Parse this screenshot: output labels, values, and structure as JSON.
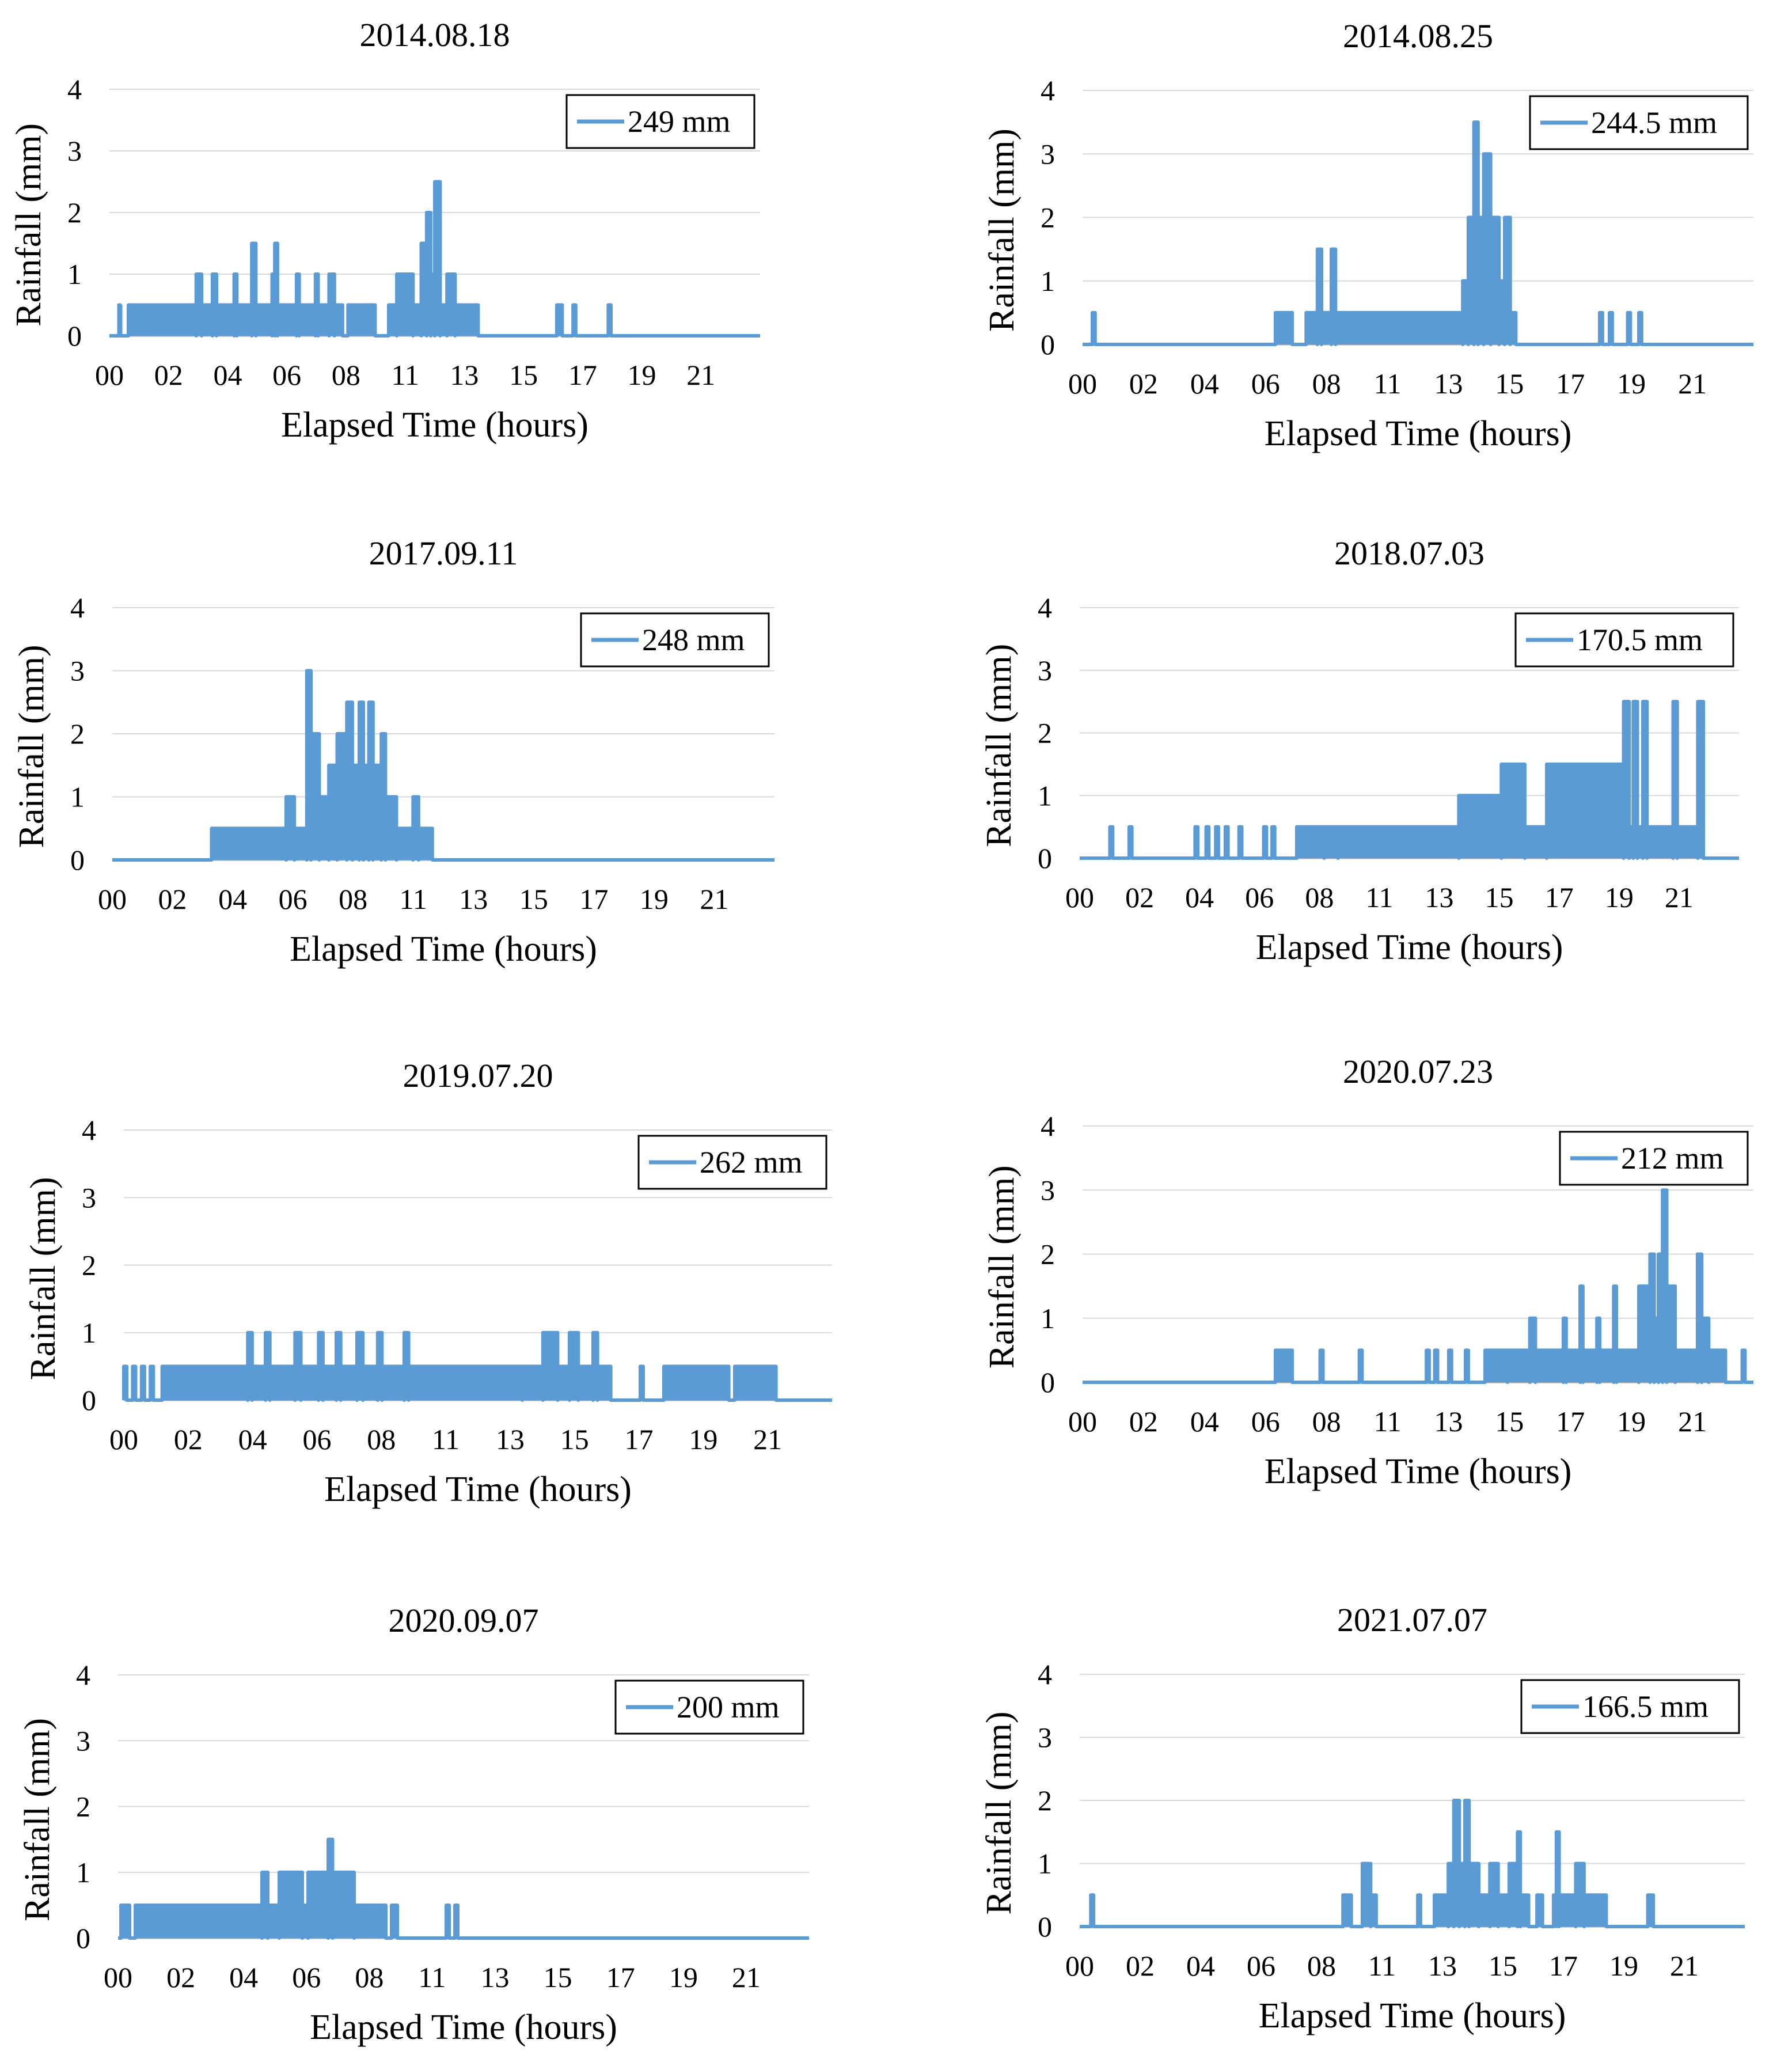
{
  "figure": {
    "series_color": "#5B9BD5",
    "grid_color": "#D9D9D9",
    "axis_color": "#A6A6A6"
  },
  "chart_data": [
    {
      "type": "line",
      "title": "2014.08.18",
      "xlabel": "Elapsed Time (hours)",
      "ylabel": "Rainfall (mm)",
      "ylim": [
        0,
        4
      ],
      "yticks": [
        "0",
        "1",
        "2",
        "3",
        "4"
      ],
      "xlim": [
        0,
        24
      ],
      "xticks": [
        "00",
        "02",
        "04",
        "06",
        "08",
        "11",
        "13",
        "15",
        "17",
        "19",
        "21"
      ],
      "grid": true,
      "legend": {
        "label": "249 mm",
        "position": "top-right"
      },
      "bursts": [
        [
          0.35,
          0.4,
          0.5
        ],
        [
          0.7,
          3.2,
          0.5
        ],
        [
          3.2,
          3.4,
          1.0
        ],
        [
          3.4,
          3.8,
          0.5
        ],
        [
          3.8,
          3.95,
          1.0
        ],
        [
          3.95,
          4.6,
          0.5
        ],
        [
          4.6,
          4.7,
          1.0
        ],
        [
          4.7,
          5.25,
          0.5
        ],
        [
          5.25,
          5.4,
          1.5
        ],
        [
          5.4,
          6.0,
          0.5
        ],
        [
          6.0,
          6.1,
          1.0
        ],
        [
          6.1,
          6.2,
          1.5
        ],
        [
          6.2,
          6.9,
          0.5
        ],
        [
          6.9,
          7.0,
          1.0
        ],
        [
          7.0,
          7.6,
          0.5
        ],
        [
          7.6,
          7.7,
          1.0
        ],
        [
          7.7,
          8.1,
          0.5
        ],
        [
          8.1,
          8.3,
          1.0
        ],
        [
          8.3,
          8.6,
          0.5
        ],
        [
          8.8,
          9.8,
          0.5
        ],
        [
          10.3,
          10.6,
          0.5
        ],
        [
          10.6,
          11.2,
          1.0
        ],
        [
          11.2,
          11.5,
          0.5
        ],
        [
          11.5,
          11.7,
          1.5
        ],
        [
          11.7,
          11.85,
          2.0
        ],
        [
          11.85,
          12.0,
          1.0
        ],
        [
          12.0,
          12.2,
          2.5
        ],
        [
          12.2,
          12.45,
          0.5
        ],
        [
          12.45,
          12.75,
          1.0
        ],
        [
          12.75,
          13.6,
          0.5
        ],
        [
          16.5,
          16.7,
          0.5
        ],
        [
          17.1,
          17.2,
          0.5
        ],
        [
          18.4,
          18.5,
          0.5
        ]
      ]
    },
    {
      "type": "line",
      "title": "2014.08.25",
      "xlabel": "Elapsed Time (hours)",
      "ylabel": "Rainfall (mm)",
      "ylim": [
        0,
        4
      ],
      "yticks": [
        "0",
        "1",
        "2",
        "3",
        "4"
      ],
      "xlim": [
        0,
        24
      ],
      "xticks": [
        "00",
        "02",
        "04",
        "06",
        "08",
        "11",
        "13",
        "15",
        "17",
        "19",
        "21"
      ],
      "grid": true,
      "legend": {
        "label": "244.5 mm",
        "position": "top-right"
      },
      "bursts": [
        [
          0.35,
          0.45,
          0.5
        ],
        [
          6.9,
          7.5,
          0.5
        ],
        [
          8.0,
          8.4,
          0.5
        ],
        [
          8.4,
          8.55,
          1.5
        ],
        [
          8.55,
          8.9,
          0.5
        ],
        [
          8.9,
          9.05,
          1.5
        ],
        [
          9.05,
          13.6,
          0.5
        ],
        [
          13.6,
          13.8,
          1.0
        ],
        [
          13.8,
          14.0,
          2.0
        ],
        [
          14.0,
          14.15,
          3.5
        ],
        [
          14.15,
          14.35,
          2.0
        ],
        [
          14.35,
          14.6,
          3.0
        ],
        [
          14.6,
          14.9,
          2.0
        ],
        [
          14.9,
          15.1,
          1.0
        ],
        [
          15.1,
          15.3,
          2.0
        ],
        [
          15.3,
          15.5,
          0.5
        ],
        [
          18.5,
          18.6,
          0.5
        ],
        [
          18.85,
          18.95,
          0.5
        ],
        [
          19.5,
          19.6,
          0.5
        ],
        [
          19.9,
          20.0,
          0.5
        ]
      ]
    },
    {
      "type": "line",
      "title": "2017.09.11",
      "xlabel": "Elapsed Time (hours)",
      "ylabel": "Rainfall (mm)",
      "ylim": [
        0,
        4
      ],
      "yticks": [
        "0",
        "1",
        "2",
        "3",
        "4"
      ],
      "xlim": [
        0,
        24
      ],
      "xticks": [
        "00",
        "02",
        "04",
        "06",
        "08",
        "11",
        "13",
        "15",
        "17",
        "19",
        "21"
      ],
      "grid": true,
      "legend": {
        "label": "248 mm",
        "position": "top-right"
      },
      "bursts": [
        [
          3.6,
          6.3,
          0.5
        ],
        [
          6.3,
          6.6,
          1.0
        ],
        [
          6.6,
          7.05,
          0.5
        ],
        [
          7.05,
          7.2,
          3.0
        ],
        [
          7.2,
          7.5,
          2.0
        ],
        [
          7.5,
          7.85,
          1.0
        ],
        [
          7.85,
          8.15,
          1.5
        ],
        [
          8.15,
          8.5,
          2.0
        ],
        [
          8.5,
          8.7,
          2.5
        ],
        [
          8.7,
          8.95,
          1.5
        ],
        [
          8.95,
          9.1,
          2.5
        ],
        [
          9.1,
          9.3,
          1.5
        ],
        [
          9.3,
          9.45,
          2.5
        ],
        [
          9.45,
          9.75,
          1.5
        ],
        [
          9.75,
          9.9,
          2.0
        ],
        [
          9.9,
          10.3,
          1.0
        ],
        [
          10.3,
          10.9,
          0.5
        ],
        [
          10.9,
          11.1,
          1.0
        ],
        [
          11.1,
          11.6,
          0.5
        ]
      ]
    },
    {
      "type": "line",
      "title": "2018.07.03",
      "xlabel": "Elapsed Time (hours)",
      "ylabel": "Rainfall (mm)",
      "ylim": [
        0,
        4
      ],
      "yticks": [
        "0",
        "1",
        "2",
        "3",
        "4"
      ],
      "xlim": [
        0,
        24
      ],
      "xticks": [
        "00",
        "02",
        "04",
        "06",
        "08",
        "11",
        "13",
        "15",
        "17",
        "19",
        "21"
      ],
      "grid": true,
      "legend": {
        "label": "170.5 mm",
        "position": "top-right"
      },
      "bursts": [
        [
          1.1,
          1.2,
          0.5
        ],
        [
          1.8,
          1.9,
          0.5
        ],
        [
          4.2,
          4.3,
          0.5
        ],
        [
          4.6,
          4.7,
          0.5
        ],
        [
          4.95,
          5.05,
          0.5
        ],
        [
          5.3,
          5.4,
          0.5
        ],
        [
          5.8,
          5.9,
          0.5
        ],
        [
          6.7,
          6.8,
          0.5
        ],
        [
          7.0,
          7.1,
          0.5
        ],
        [
          7.9,
          8.9,
          0.5
        ],
        [
          8.9,
          9.4,
          0.5
        ],
        [
          9.4,
          13.8,
          0.5
        ],
        [
          13.8,
          15.35,
          1.0
        ],
        [
          15.35,
          16.2,
          1.5
        ],
        [
          16.2,
          17.0,
          0.5
        ],
        [
          17.0,
          19.8,
          1.5
        ],
        [
          19.8,
          20.0,
          2.5
        ],
        [
          20.0,
          20.15,
          0.5
        ],
        [
          20.15,
          20.3,
          2.5
        ],
        [
          20.3,
          20.5,
          0.5
        ],
        [
          20.5,
          20.65,
          2.5
        ],
        [
          20.65,
          21.6,
          0.5
        ],
        [
          21.6,
          21.75,
          2.5
        ],
        [
          21.75,
          22.5,
          0.5
        ],
        [
          22.5,
          22.7,
          2.5
        ]
      ]
    },
    {
      "type": "line",
      "title": "2019.07.20",
      "xlabel": "Elapsed Time (hours)",
      "ylabel": "Rainfall (mm)",
      "ylim": [
        0,
        4
      ],
      "yticks": [
        "0",
        "1",
        "2",
        "3",
        "4"
      ],
      "xlim": [
        0,
        24
      ],
      "xticks": [
        "00",
        "02",
        "04",
        "06",
        "08",
        "11",
        "13",
        "15",
        "17",
        "19",
        "21"
      ],
      "grid": true,
      "legend": {
        "label": "262 mm",
        "position": "top-right"
      },
      "bursts": [
        [
          0.0,
          0.1,
          0.5
        ],
        [
          0.3,
          0.4,
          0.5
        ],
        [
          0.6,
          0.7,
          0.5
        ],
        [
          0.9,
          1.0,
          0.5
        ],
        [
          1.3,
          4.2,
          0.5
        ],
        [
          4.2,
          4.35,
          1.0
        ],
        [
          4.35,
          4.8,
          0.5
        ],
        [
          4.8,
          4.95,
          1.0
        ],
        [
          4.95,
          5.8,
          0.5
        ],
        [
          5.8,
          6.0,
          1.0
        ],
        [
          6.0,
          6.6,
          0.5
        ],
        [
          6.6,
          6.75,
          1.0
        ],
        [
          6.75,
          7.2,
          0.5
        ],
        [
          7.2,
          7.35,
          1.0
        ],
        [
          7.35,
          7.9,
          0.5
        ],
        [
          7.9,
          8.1,
          1.0
        ],
        [
          8.1,
          8.6,
          0.5
        ],
        [
          8.6,
          8.75,
          1.0
        ],
        [
          8.75,
          9.5,
          0.5
        ],
        [
          9.5,
          9.65,
          1.0
        ],
        [
          9.65,
          13.5,
          0.5
        ],
        [
          13.5,
          14.2,
          0.5
        ],
        [
          14.2,
          14.7,
          1.0
        ],
        [
          14.7,
          15.1,
          0.5
        ],
        [
          15.1,
          15.4,
          1.0
        ],
        [
          15.4,
          15.9,
          0.5
        ],
        [
          15.9,
          16.05,
          1.0
        ],
        [
          16.05,
          16.5,
          0.5
        ],
        [
          17.5,
          17.6,
          0.5
        ],
        [
          18.3,
          20.5,
          0.5
        ],
        [
          20.7,
          22.1,
          0.5
        ]
      ]
    },
    {
      "type": "line",
      "title": "2020.07.23",
      "xlabel": "Elapsed Time (hours)",
      "ylabel": "Rainfall (mm)",
      "ylim": [
        0,
        4
      ],
      "yticks": [
        "0",
        "1",
        "2",
        "3",
        "4"
      ],
      "xlim": [
        0,
        24
      ],
      "xticks": [
        "00",
        "02",
        "04",
        "06",
        "08",
        "11",
        "13",
        "15",
        "17",
        "19",
        "21"
      ],
      "grid": true,
      "legend": {
        "label": "212 mm",
        "position": "top-right"
      },
      "bursts": [
        [
          6.9,
          7.5,
          0.5
        ],
        [
          8.5,
          8.6,
          0.5
        ],
        [
          9.9,
          10.0,
          0.5
        ],
        [
          12.3,
          12.4,
          0.5
        ],
        [
          12.6,
          12.7,
          0.5
        ],
        [
          13.1,
          13.2,
          0.5
        ],
        [
          13.7,
          13.8,
          0.5
        ],
        [
          14.4,
          15.2,
          0.5
        ],
        [
          15.2,
          16.0,
          0.5
        ],
        [
          16.0,
          16.2,
          1.0
        ],
        [
          16.2,
          17.2,
          0.5
        ],
        [
          17.2,
          17.3,
          1.0
        ],
        [
          17.3,
          17.8,
          0.5
        ],
        [
          17.8,
          17.9,
          1.5
        ],
        [
          17.9,
          18.4,
          0.5
        ],
        [
          18.4,
          18.5,
          1.0
        ],
        [
          18.5,
          19.0,
          0.5
        ],
        [
          19.0,
          19.1,
          1.5
        ],
        [
          19.1,
          19.9,
          0.5
        ],
        [
          19.9,
          20.3,
          1.5
        ],
        [
          20.3,
          20.45,
          2.0
        ],
        [
          20.45,
          20.6,
          1.0
        ],
        [
          20.6,
          20.75,
          2.0
        ],
        [
          20.75,
          20.9,
          3.0
        ],
        [
          20.9,
          21.2,
          1.5
        ],
        [
          21.2,
          22.0,
          0.5
        ],
        [
          22.0,
          22.15,
          2.0
        ],
        [
          22.15,
          22.4,
          1.0
        ],
        [
          22.4,
          23.0,
          0.5
        ],
        [
          23.6,
          23.7,
          0.5
        ]
      ]
    },
    {
      "type": "line",
      "title": "2020.09.07",
      "xlabel": "Elapsed Time (hours)",
      "ylabel": "Rainfall (mm)",
      "ylim": [
        0,
        4
      ],
      "yticks": [
        "0",
        "1",
        "2",
        "3",
        "4"
      ],
      "xlim": [
        0,
        24
      ],
      "xticks": [
        "00",
        "02",
        "04",
        "06",
        "08",
        "11",
        "13",
        "15",
        "17",
        "19",
        "21"
      ],
      "grid": true,
      "legend": {
        "label": "200 mm",
        "position": "top-right"
      },
      "bursts": [
        [
          0.1,
          0.4,
          0.5
        ],
        [
          0.6,
          5.0,
          0.5
        ],
        [
          5.0,
          5.2,
          1.0
        ],
        [
          5.2,
          5.6,
          0.5
        ],
        [
          5.6,
          6.4,
          1.0
        ],
        [
          6.4,
          6.6,
          0.5
        ],
        [
          6.6,
          7.3,
          1.0
        ],
        [
          7.3,
          7.45,
          1.5
        ],
        [
          7.45,
          8.2,
          1.0
        ],
        [
          8.2,
          9.3,
          0.5
        ],
        [
          9.5,
          9.7,
          0.5
        ],
        [
          11.4,
          11.5,
          0.5
        ],
        [
          11.7,
          11.8,
          0.5
        ]
      ]
    },
    {
      "type": "line",
      "title": "2021.07.07",
      "xlabel": "Elapsed Time (hours)",
      "ylabel": "Rainfall (mm)",
      "ylim": [
        0,
        4
      ],
      "yticks": [
        "0",
        "1",
        "2",
        "3",
        "4"
      ],
      "xlim": [
        0,
        24
      ],
      "xticks": [
        "00",
        "02",
        "04",
        "06",
        "08",
        "11",
        "13",
        "15",
        "17",
        "19",
        "21"
      ],
      "grid": true,
      "legend": {
        "label": "166.5 mm",
        "position": "top-right"
      },
      "bursts": [
        [
          0.4,
          0.5,
          0.5
        ],
        [
          9.5,
          9.8,
          0.5
        ],
        [
          10.2,
          10.5,
          1.0
        ],
        [
          10.5,
          10.7,
          0.5
        ],
        [
          12.2,
          12.3,
          0.5
        ],
        [
          12.8,
          13.3,
          0.5
        ],
        [
          13.3,
          13.5,
          1.0
        ],
        [
          13.5,
          13.7,
          2.0
        ],
        [
          13.7,
          13.9,
          1.0
        ],
        [
          13.9,
          14.05,
          2.0
        ],
        [
          14.05,
          14.4,
          1.0
        ],
        [
          14.4,
          14.8,
          0.5
        ],
        [
          14.8,
          15.1,
          1.0
        ],
        [
          15.1,
          15.5,
          0.5
        ],
        [
          15.5,
          15.8,
          1.0
        ],
        [
          15.8,
          15.9,
          1.5
        ],
        [
          15.9,
          16.2,
          0.5
        ],
        [
          16.5,
          16.7,
          0.5
        ],
        [
          17.1,
          17.2,
          0.5
        ],
        [
          17.2,
          17.3,
          1.5
        ],
        [
          17.3,
          17.9,
          0.5
        ],
        [
          17.9,
          18.2,
          1.0
        ],
        [
          18.2,
          19.0,
          0.5
        ],
        [
          20.5,
          20.7,
          0.5
        ]
      ]
    }
  ]
}
